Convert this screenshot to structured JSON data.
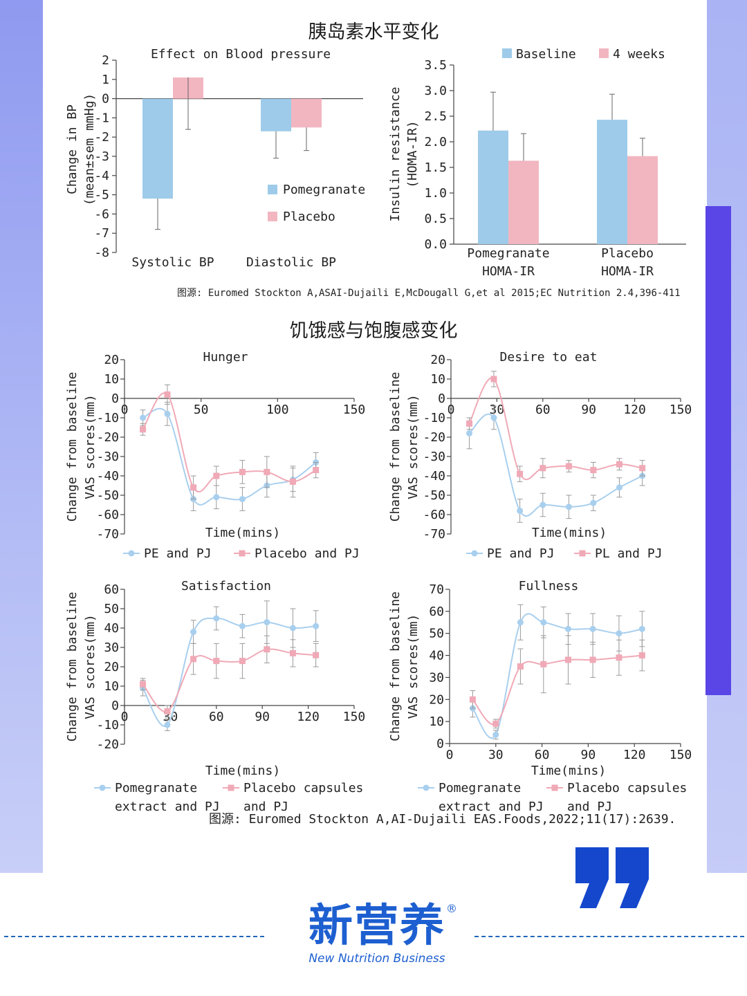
{
  "heading_top": "胰岛素水平变化",
  "heading_mid": "饥饿感与饱腹感变化",
  "source_top": "图源: Euromed Stockton A,ASAI-Dujaili E,McDougall G,et al 2015;EC Nutrition 2.4,396-411",
  "source_bottom": "图源: Euromed Stockton A,AI-Dujaili EAS.Foods,2022;11(17):2639.",
  "logo": {
    "cn": "新营养",
    "en": "New Nutrition Business",
    "reg": "®"
  },
  "colors": {
    "blue": "#9ecbe9",
    "pink": "#f2b6c0",
    "blue_line": "#a8cfee",
    "pink_line": "#f0a9b6",
    "brand": "#1d5fd0"
  },
  "chart_data": [
    {
      "type": "bar",
      "title": "Effect on Blood pressure",
      "ylabel": "Change in BP (mean±sem mmHg)",
      "categories": [
        "Systolic BP",
        "Diastolic BP"
      ],
      "ylim": [
        -8,
        2
      ],
      "yticks": [
        2,
        1,
        0,
        -1,
        -2,
        -3,
        -4,
        -5,
        -6,
        -7,
        -8
      ],
      "legend_position": "lower-right",
      "series": [
        {
          "name": "Pomegranate",
          "values": [
            -5.2,
            -1.7
          ],
          "errors": [
            1.6,
            1.4
          ]
        },
        {
          "name": "Placebo",
          "values": [
            1.1,
            -1.5
          ],
          "errors": [
            2.7,
            1.2
          ]
        }
      ]
    },
    {
      "type": "bar",
      "title": "",
      "ylabel": "Insulin resistance (HOMA-IR)",
      "categories": [
        "Pomegranate HOMA-IR",
        "Placebo HOMA-IR"
      ],
      "category_lines": [
        [
          "Pomegranate",
          "HOMA-IR"
        ],
        [
          "Placebo",
          "HOMA-IR"
        ]
      ],
      "ylim": [
        0,
        3.5
      ],
      "yticks": [
        "3.5",
        "3.0",
        "2.5",
        "2.0",
        "1.5",
        "1.0",
        "0.5",
        "0.0"
      ],
      "legend_position": "top",
      "series": [
        {
          "name": "Baseline",
          "values": [
            2.22,
            2.43
          ],
          "errors": [
            0.75,
            0.5
          ]
        },
        {
          "name": "4 weeks",
          "values": [
            1.63,
            1.72
          ],
          "errors": [
            0.53,
            0.35
          ]
        }
      ]
    },
    {
      "type": "line",
      "title": "Hunger",
      "ylabel": "Change from baseline VAS scores(mm)",
      "xlabel": "Time(mins)",
      "xlim": [
        0,
        150
      ],
      "ylim": [
        -70,
        20
      ],
      "xticks": [
        0,
        50,
        100,
        150
      ],
      "yticks": [
        20,
        10,
        0,
        -10,
        -20,
        -30,
        -40,
        -50,
        -60,
        -70
      ],
      "series": [
        {
          "name": "PE and PJ",
          "x": [
            12,
            28,
            45,
            60,
            77,
            93,
            110,
            125
          ],
          "y": [
            -10,
            -8,
            -52,
            -51,
            -52,
            -45,
            -42,
            -33
          ],
          "errors": [
            4,
            6,
            6,
            6,
            6,
            6,
            6,
            5
          ]
        },
        {
          "name": "Placebo and PJ",
          "x": [
            12,
            28,
            45,
            60,
            77,
            93,
            110,
            125
          ],
          "y": [
            -16,
            2,
            -46,
            -40,
            -38,
            -38,
            -43,
            -37
          ],
          "errors": [
            3,
            5,
            6,
            5,
            6,
            8,
            8,
            4
          ]
        }
      ]
    },
    {
      "type": "line",
      "title": "Desire to eat",
      "ylabel": "Change from baseline VAS scores(mm)",
      "xlabel": "Time(mins)",
      "xlim": [
        0,
        150
      ],
      "ylim": [
        -70,
        20
      ],
      "xticks": [
        0,
        30,
        60,
        90,
        120,
        150
      ],
      "yticks": [
        20,
        10,
        0,
        -10,
        -20,
        -30,
        -40,
        -50,
        -60,
        -70
      ],
      "series": [
        {
          "name": "PE and PJ",
          "x": [
            12,
            28,
            45,
            60,
            77,
            93,
            110,
            125
          ],
          "y": [
            -18,
            -10,
            -58,
            -55,
            -56,
            -54,
            -46,
            -40
          ],
          "errors": [
            8,
            6,
            6,
            6,
            6,
            4,
            5,
            5
          ]
        },
        {
          "name": "PL and PJ",
          "x": [
            12,
            28,
            45,
            60,
            77,
            93,
            110,
            125
          ],
          "y": [
            -13,
            10,
            -39,
            -36,
            -35,
            -37,
            -34,
            -36
          ],
          "errors": [
            3,
            4,
            4,
            5,
            3,
            4,
            3,
            4
          ]
        }
      ]
    },
    {
      "type": "line",
      "title": "Satisfaction",
      "ylabel": "Change from baseline VAS scores(mm)",
      "xlabel": "Time(mins)",
      "xlim": [
        0,
        150
      ],
      "ylim": [
        -20,
        60
      ],
      "xticks": [
        0,
        30,
        60,
        90,
        120,
        150
      ],
      "yticks": [
        60,
        50,
        40,
        30,
        20,
        10,
        0,
        -10,
        -20
      ],
      "series": [
        {
          "name": "Pomegranate extract and PJ",
          "legend_lines": [
            "Pomegranate",
            "extract and PJ"
          ],
          "x": [
            12,
            28,
            45,
            60,
            77,
            93,
            110,
            125
          ],
          "y": [
            9,
            -10,
            38,
            45,
            41,
            43,
            40,
            41
          ],
          "errors": [
            4,
            3,
            6,
            6,
            6,
            11,
            10,
            8
          ]
        },
        {
          "name": "Placebo capsules and PJ",
          "legend_lines": [
            "Placebo capsules",
            "and PJ"
          ],
          "x": [
            12,
            28,
            45,
            60,
            77,
            93,
            110,
            125
          ],
          "y": [
            11,
            -3,
            24,
            23,
            23,
            29,
            27,
            26
          ],
          "errors": [
            3,
            3,
            8,
            9,
            9,
            7,
            7,
            6
          ]
        }
      ]
    },
    {
      "type": "line",
      "title": "Fullness",
      "ylabel": "Change from baseline VAS scores(mm)",
      "xlabel": "Time(mins)",
      "xlim": [
        0,
        150
      ],
      "ylim": [
        0,
        70
      ],
      "xticks": [
        0,
        30,
        60,
        90,
        120,
        150
      ],
      "yticks": [
        70,
        60,
        50,
        40,
        30,
        20,
        10,
        0
      ],
      "series": [
        {
          "name": "Pomegranate extract and PJ",
          "legend_lines": [
            "Pomegranate",
            "extract and PJ"
          ],
          "x": [
            15,
            30,
            46,
            61,
            77,
            93,
            110,
            125
          ],
          "y": [
            16,
            4,
            55,
            55,
            52,
            52,
            50,
            52
          ],
          "errors": [
            4,
            2,
            8,
            7,
            7,
            7,
            8,
            8
          ]
        },
        {
          "name": "Placebo capsules and PJ",
          "legend_lines": [
            "Placebo capsules",
            "and PJ"
          ],
          "x": [
            15,
            30,
            46,
            61,
            77,
            93,
            110,
            125
          ],
          "y": [
            20,
            9,
            35,
            36,
            38,
            38,
            39,
            40
          ],
          "errors": [
            4,
            2,
            8,
            13,
            11,
            8,
            8,
            7
          ]
        }
      ]
    }
  ]
}
